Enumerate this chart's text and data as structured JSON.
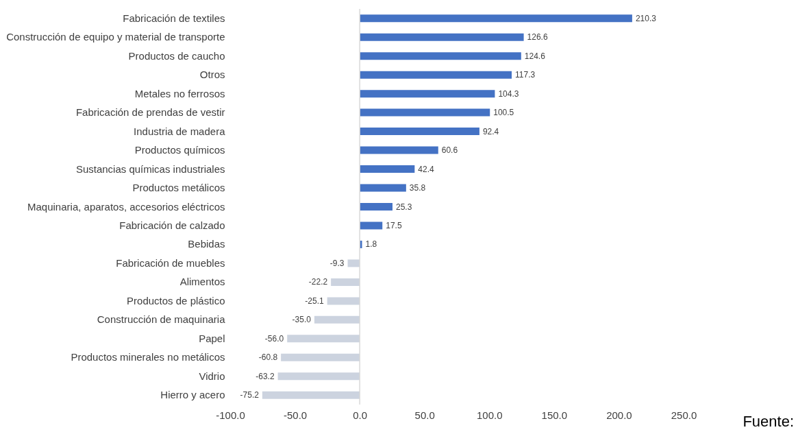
{
  "chart_data": {
    "type": "bar",
    "orientation": "horizontal",
    "categories": [
      "Fabricación de textiles",
      "Construcción de equipo y material de transporte",
      "Productos de caucho",
      "Otros",
      "Metales no ferrosos",
      "Fabricación de prendas de vestir",
      "Industria de madera",
      "Productos químicos",
      "Sustancias químicas industriales",
      "Productos metálicos",
      "Maquinaria, aparatos, accesorios eléctricos",
      "Fabricación de calzado",
      "Bebidas",
      "Fabricación de muebles",
      "Alimentos",
      "Productos de plástico",
      "Construcción de maquinaria",
      "Papel",
      "Productos minerales no metálicos",
      "Vidrio",
      "Hierro y acero"
    ],
    "values": [
      210.3,
      126.6,
      124.6,
      117.3,
      104.3,
      100.5,
      92.4,
      60.6,
      42.4,
      35.8,
      25.3,
      17.5,
      1.8,
      -9.3,
      -22.2,
      -25.1,
      -35.0,
      -56.0,
      -60.8,
      -63.2,
      -75.2
    ],
    "colors": [
      "#4472c4",
      "#4472c4",
      "#4472c4",
      "#4472c4",
      "#4472c4",
      "#4472c4",
      "#4472c4",
      "#4472c4",
      "#4472c4",
      "#4472c4",
      "#4472c4",
      "#4472c4",
      "#4472c4",
      "#ccd3df",
      "#ccd3df",
      "#ccd3df",
      "#ccd3df",
      "#ccd3df",
      "#ccd3df",
      "#ccd3df",
      "#ccd3df"
    ],
    "value_labels": [
      "210.3",
      "126.6",
      "124.6",
      "117.3",
      "104.3",
      "100.5",
      "92.4",
      "60.6",
      "42.4",
      "35.8",
      "25.3",
      "17.5",
      "1.8",
      "-9.3",
      "-22.2",
      "-25.1",
      "-35.0",
      "-56.0",
      "-60.8",
      "-63.2",
      "-75.2"
    ],
    "xlim": [
      -100,
      250
    ],
    "xticks": [
      {
        "value": -100,
        "label": "-100.0"
      },
      {
        "value": -50,
        "label": "-50.0"
      },
      {
        "value": 0,
        "label": "0.0"
      },
      {
        "value": 50,
        "label": "50.0"
      },
      {
        "value": 100,
        "label": "100.0"
      },
      {
        "value": 150,
        "label": "150.0"
      },
      {
        "value": 200,
        "label": "200.0"
      },
      {
        "value": 250,
        "label": "250.0"
      }
    ],
    "ref_lines": [
      {
        "axis": "x",
        "value": 0,
        "color": "#d9d9d9"
      }
    ],
    "grid": false,
    "annotations": [
      "Fuente:"
    ]
  }
}
